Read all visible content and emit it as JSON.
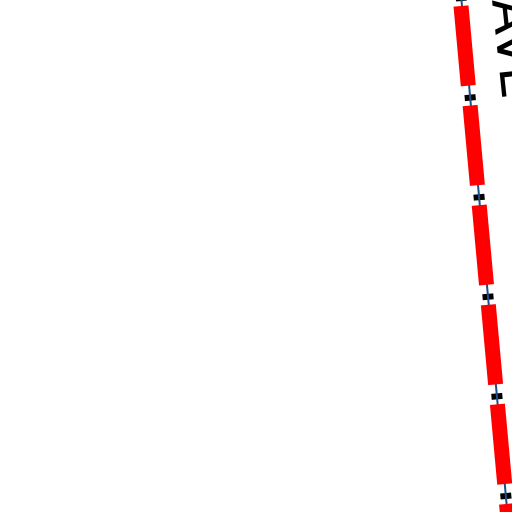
{
  "map": {
    "labels": [
      "AVE"
    ]
  }
}
